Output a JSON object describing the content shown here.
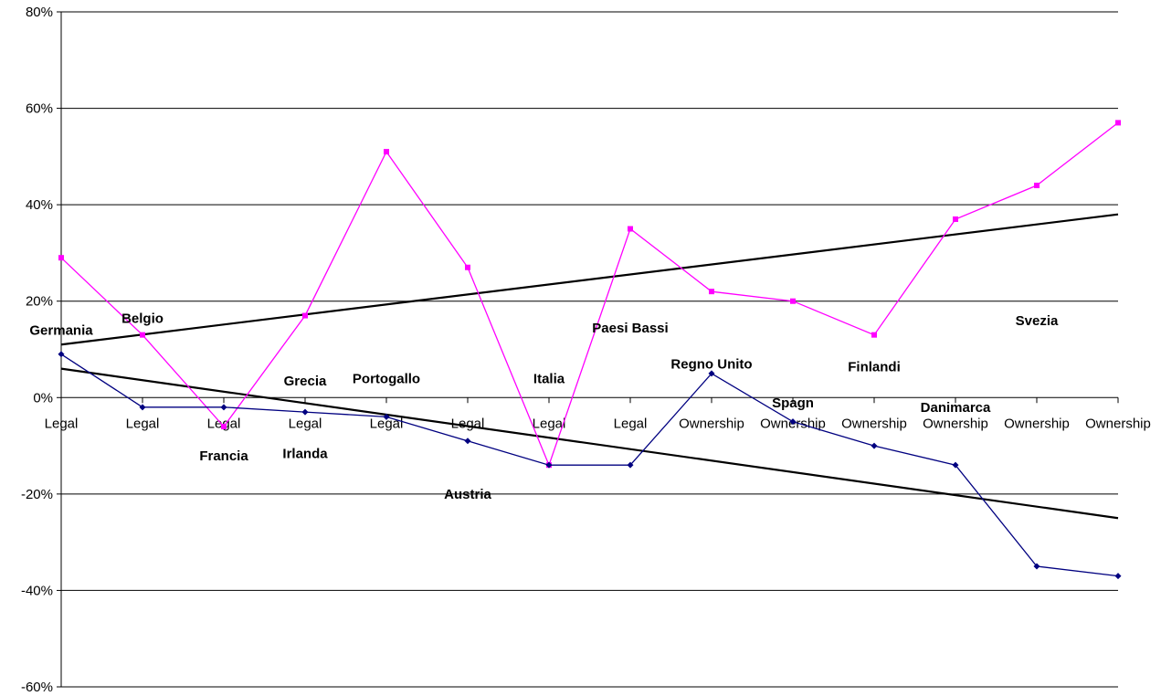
{
  "chart_data": {
    "type": "line",
    "title": "",
    "xlabel": "",
    "ylabel": "",
    "ylim": [
      -60,
      80
    ],
    "ytick_step": 20,
    "yticks_format": "percent",
    "grid": "horizontal",
    "legend": "none",
    "categories": [
      "Legal",
      "Legal",
      "Legal",
      "Legal",
      "Legal",
      "Legal",
      "Legal",
      "Legal",
      "Ownership",
      "Ownership",
      "Ownership",
      "Ownership",
      "Ownership",
      "Ownership"
    ],
    "series": [
      {
        "color": "#ff00ff",
        "marker": "square",
        "values": [
          29,
          13,
          -6,
          17,
          51,
          27,
          -14,
          35,
          22,
          20,
          13,
          37,
          44,
          57
        ]
      },
      {
        "color": "#000080",
        "marker": "diamond",
        "values": [
          9,
          -2,
          -2,
          -3,
          -4,
          -9,
          -14,
          -14,
          5,
          -5,
          -10,
          -14,
          -35,
          -37
        ]
      }
    ],
    "trendlines": [
      {
        "color": "#000000",
        "start": 11,
        "end": 38
      },
      {
        "color": "#000000",
        "start": 6,
        "end": -25
      }
    ],
    "annotations": [
      {
        "text": "Germania",
        "category_index": 0,
        "y": 13
      },
      {
        "text": "Belgio",
        "category_index": 1,
        "y": 15.5
      },
      {
        "text": "Francia",
        "category_index": 2,
        "y": -13
      },
      {
        "text": "Grecia",
        "category_index": 3,
        "y": 2.5
      },
      {
        "text": "Irlanda",
        "category_index": 3,
        "y": -12.5
      },
      {
        "text": "Portogallo",
        "category_index": 4,
        "y": 3
      },
      {
        "text": "Austria",
        "category_index": 5,
        "y": -21
      },
      {
        "text": "Italia",
        "category_index": 6,
        "y": 3
      },
      {
        "text": "Paesi Bassi",
        "category_index": 7,
        "y": 13.5
      },
      {
        "text": "Regno Unito",
        "category_index": 8,
        "y": 6
      },
      {
        "text": "Spagn",
        "category_index": 9,
        "y": -2
      },
      {
        "text": "Finlandi",
        "category_index": 10,
        "y": 5.5
      },
      {
        "text": "Danimarca",
        "category_index": 11,
        "y": -3
      },
      {
        "text": "Svezia",
        "category_index": 12,
        "y": 15
      }
    ]
  }
}
